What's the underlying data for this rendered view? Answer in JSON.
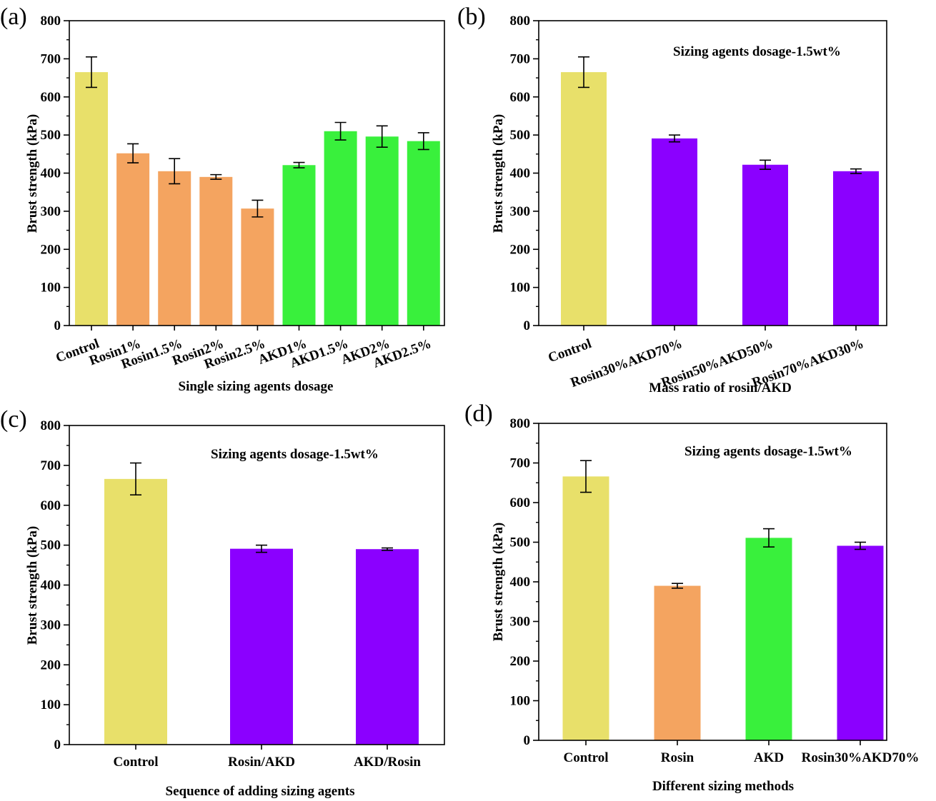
{
  "chart_data": [
    {
      "panel": "(a)",
      "type": "bar",
      "xlabel": "Single sizing agents dosage",
      "ylabel": "Brust strength (kPa)",
      "annotation": "",
      "ylim": [
        0,
        800
      ],
      "yticks": [
        "0",
        "100",
        "200",
        "300",
        "400",
        "500",
        "600",
        "700",
        "800"
      ],
      "categories": [
        "Control",
        "Rosin1%",
        "Rosin1.5%",
        "Rosin2%",
        "Rosin2.5%",
        "AKD1%",
        "AKD1.5%",
        "AKD2%",
        "AKD2.5%"
      ],
      "values": [
        665,
        452,
        405,
        390,
        307,
        421,
        510,
        496,
        484
      ],
      "errors": [
        40,
        25,
        33,
        6,
        22,
        7,
        23,
        28,
        22
      ],
      "colors": [
        "#e8e06a",
        "#f4a460",
        "#f4a460",
        "#f4a460",
        "#f4a460",
        "#39f03c",
        "#39f03c",
        "#39f03c",
        "#39f03c"
      ],
      "label_style": "rotated"
    },
    {
      "panel": "(b)",
      "type": "bar",
      "xlabel": "Mass ratio of rosin/AKD",
      "ylabel": "Brust strength (kPa)",
      "annotation": "Sizing agents dosage-1.5wt%",
      "ylim": [
        0,
        800
      ],
      "yticks": [
        "0",
        "100",
        "200",
        "300",
        "400",
        "500",
        "600",
        "700",
        "800"
      ],
      "categories": [
        "Control",
        "Rosin30%AKD70%",
        "Rosin50%AKD50%",
        "Rosin70%AKD30%"
      ],
      "values": [
        665,
        491,
        422,
        405
      ],
      "errors": [
        40,
        9,
        12,
        6
      ],
      "colors": [
        "#e8e06a",
        "#8b00ff",
        "#8b00ff",
        "#8b00ff"
      ],
      "label_style": "rotated"
    },
    {
      "panel": "(c)",
      "type": "bar",
      "xlabel": "Sequence of adding sizing agents",
      "ylabel": "Brust strength (kPa)",
      "annotation": "Sizing agents dosage-1.5wt%",
      "ylim": [
        0,
        800
      ],
      "yticks": [
        "0",
        "100",
        "200",
        "300",
        "400",
        "500",
        "600",
        "700",
        "800"
      ],
      "categories": [
        "Control",
        "Rosin/AKD",
        "AKD/Rosin"
      ],
      "values": [
        666,
        491,
        490
      ],
      "errors": [
        40,
        9,
        3
      ],
      "colors": [
        "#e8e06a",
        "#8b00ff",
        "#8b00ff"
      ],
      "label_style": "flat"
    },
    {
      "panel": "(d)",
      "type": "bar",
      "xlabel": "Different sizing methods",
      "ylabel": "Brust strength (kPa)",
      "annotation": "Sizing agents dosage-1.5wt%",
      "ylim": [
        0,
        800
      ],
      "yticks": [
        "0",
        "100",
        "200",
        "300",
        "400",
        "500",
        "600",
        "700",
        "800"
      ],
      "categories": [
        "Control",
        "Rosin",
        "AKD",
        "Rosin30%AKD70%"
      ],
      "values": [
        666,
        390,
        511,
        491
      ],
      "errors": [
        40,
        6,
        23,
        9
      ],
      "colors": [
        "#e8e06a",
        "#f4a460",
        "#39f03c",
        "#8b00ff"
      ],
      "label_style": "flat"
    }
  ]
}
